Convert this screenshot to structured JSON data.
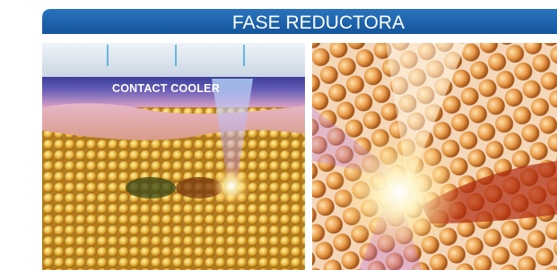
{
  "header": {
    "title": "FASE REDUCTORA"
  },
  "panels": [
    {
      "label": "CONTACT COOLER"
    }
  ]
}
